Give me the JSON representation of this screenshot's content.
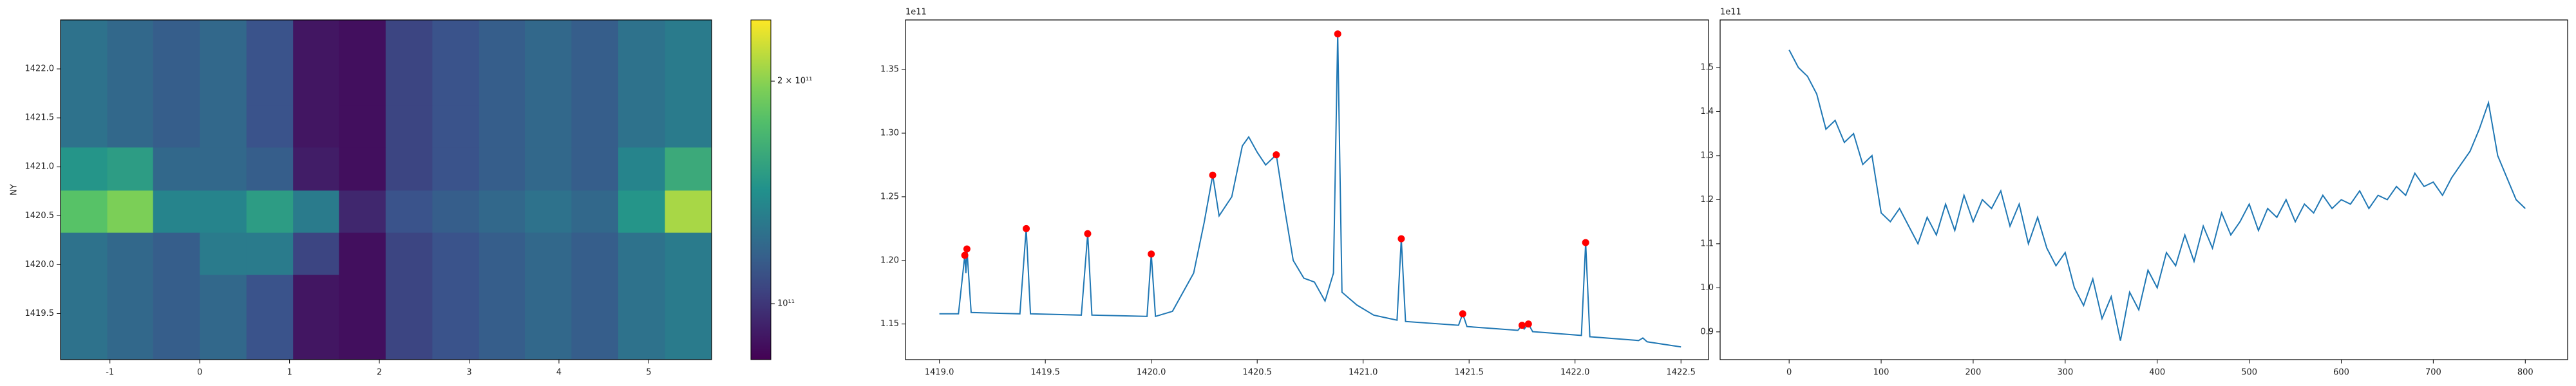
{
  "chart_data": [
    {
      "type": "heatmap",
      "ylabel": "NY",
      "colormap": "viridis",
      "color_log": true,
      "xlim": [
        -1.55,
        5.7
      ],
      "ylim": [
        1419.03,
        1422.5
      ],
      "xticks": [
        -1,
        0,
        1,
        2,
        3,
        4,
        5
      ],
      "yticks": [
        1419.5,
        {
          "value": 1420,
          "label": "1420.0"
        },
        1420.5,
        {
          "value": 1421,
          "label": "1421.0"
        },
        1421.5,
        {
          "value": 1422,
          "label": "1422.0"
        }
      ],
      "xedges": [
        -1.55,
        -1.03,
        -0.52,
        0,
        0.52,
        1.04,
        1.55,
        2.07,
        2.59,
        3.11,
        3.62,
        4.14,
        4.66,
        5.18,
        5.7
      ],
      "yedges": [
        1419.03,
        1419.46,
        1419.9,
        1420.33,
        1420.76,
        1421.2,
        1421.63,
        1422.07,
        1422.5
      ],
      "z": [
        [
          125000000000.0,
          120000000000.0,
          115000000000.0,
          120000000000.0,
          110000000000.0,
          90000000000.0,
          88000000000.0,
          105000000000.0,
          110000000000.0,
          115000000000.0,
          120000000000.0,
          115000000000.0,
          125000000000.0,
          130000000000.0
        ],
        [
          125000000000.0,
          120000000000.0,
          115000000000.0,
          120000000000.0,
          110000000000.0,
          90000000000.0,
          88000000000.0,
          105000000000.0,
          110000000000.0,
          115000000000.0,
          120000000000.0,
          115000000000.0,
          125000000000.0,
          130000000000.0
        ],
        [
          125000000000.0,
          120000000000.0,
          115000000000.0,
          130000000000.0,
          130000000000.0,
          105000000000.0,
          88000000000.0,
          105000000000.0,
          110000000000.0,
          115000000000.0,
          120000000000.0,
          115000000000.0,
          125000000000.0,
          130000000000.0
        ],
        [
          180000000000.0,
          195000000000.0,
          135000000000.0,
          135000000000.0,
          150000000000.0,
          130000000000.0,
          95000000000.0,
          110000000000.0,
          115000000000.0,
          120000000000.0,
          125000000000.0,
          120000000000.0,
          145000000000.0,
          210000000000.0
        ],
        [
          145000000000.0,
          150000000000.0,
          120000000000.0,
          120000000000.0,
          115000000000.0,
          92000000000.0,
          88000000000.0,
          105000000000.0,
          110000000000.0,
          115000000000.0,
          120000000000.0,
          115000000000.0,
          135000000000.0,
          160000000000.0
        ],
        [
          125000000000.0,
          120000000000.0,
          115000000000.0,
          120000000000.0,
          110000000000.0,
          90000000000.0,
          88000000000.0,
          105000000000.0,
          110000000000.0,
          115000000000.0,
          120000000000.0,
          115000000000.0,
          125000000000.0,
          130000000000.0
        ],
        [
          125000000000.0,
          120000000000.0,
          115000000000.0,
          120000000000.0,
          110000000000.0,
          90000000000.0,
          88000000000.0,
          105000000000.0,
          110000000000.0,
          115000000000.0,
          120000000000.0,
          115000000000.0,
          125000000000.0,
          130000000000.0
        ],
        [
          125000000000.0,
          120000000000.0,
          115000000000.0,
          120000000000.0,
          110000000000.0,
          90000000000.0,
          88000000000.0,
          105000000000.0,
          110000000000.0,
          115000000000.0,
          120000000000.0,
          115000000000.0,
          125000000000.0,
          130000000000.0
        ]
      ],
      "clim": [
        84000000000.0,
        242000000000.0
      ],
      "cticks": [
        {
          "value": 100000000000.0,
          "label": "10¹¹"
        },
        {
          "value": 200000000000.0,
          "label": "2 × 10¹¹"
        }
      ]
    },
    {
      "type": "line",
      "y_offset_label": "1e11",
      "xlim": [
        1418.84,
        1422.63
      ],
      "ylim": [
        1.122,
        1.389
      ],
      "xticks": [
        {
          "value": 1419,
          "label": "1419.0"
        },
        1419.5,
        {
          "value": 1420,
          "label": "1420.0"
        },
        1420.5,
        {
          "value": 1421,
          "label": "1421.0"
        },
        1421.5,
        {
          "value": 1422,
          "label": "1422.0"
        },
        1422.5
      ],
      "yticks": [
        1.15,
        {
          "value": 1.2,
          "label": "1.20"
        },
        1.25,
        {
          "value": 1.3,
          "label": "1.30"
        },
        1.35
      ],
      "series": [
        {
          "mode": "line",
          "color": "#1f77b4",
          "x": [
            1419.0,
            1419.09,
            1419.12,
            1419.125,
            1419.13,
            1419.15,
            1419.38,
            1419.41,
            1419.43,
            1419.67,
            1419.7,
            1419.72,
            1419.98,
            1420.0,
            1420.02,
            1420.1,
            1420.2,
            1420.25,
            1420.29,
            1420.32,
            1420.38,
            1420.43,
            1420.46,
            1420.5,
            1420.54,
            1420.59,
            1420.63,
            1420.67,
            1420.72,
            1420.77,
            1420.82,
            1420.86,
            1420.88,
            1420.9,
            1420.97,
            1421.05,
            1421.16,
            1421.18,
            1421.2,
            1421.45,
            1421.47,
            1421.49,
            1421.73,
            1421.75,
            1421.76,
            1421.78,
            1421.8,
            1422.03,
            1422.05,
            1422.07,
            1422.3,
            1422.32,
            1422.34,
            1422.5
          ],
          "values": [
            1.158,
            1.158,
            1.204,
            1.19,
            1.209,
            1.159,
            1.158,
            1.225,
            1.158,
            1.157,
            1.221,
            1.157,
            1.156,
            1.205,
            1.156,
            1.16,
            1.19,
            1.23,
            1.267,
            1.235,
            1.25,
            1.29,
            1.297,
            1.285,
            1.275,
            1.283,
            1.24,
            1.2,
            1.186,
            1.183,
            1.168,
            1.19,
            1.378,
            1.175,
            1.165,
            1.157,
            1.153,
            1.217,
            1.152,
            1.149,
            1.158,
            1.148,
            1.145,
            1.149,
            1.146,
            1.15,
            1.144,
            1.141,
            1.214,
            1.14,
            1.137,
            1.139,
            1.136,
            1.132
          ]
        },
        {
          "mode": "markers",
          "color": "#ff0000",
          "x": [
            1419.12,
            1419.13,
            1419.41,
            1419.7,
            1420.0,
            1420.29,
            1420.59,
            1420.88,
            1421.18,
            1421.47,
            1421.75,
            1421.78,
            1422.05
          ],
          "values": [
            1.204,
            1.209,
            1.225,
            1.221,
            1.205,
            1.267,
            1.283,
            1.378,
            1.217,
            1.158,
            1.149,
            1.15,
            1.214
          ]
        }
      ]
    },
    {
      "type": "line",
      "y_offset_label": "1e11",
      "xlim": [
        -75,
        846
      ],
      "ylim": [
        0.837,
        1.608
      ],
      "xticks": [
        0,
        100,
        200,
        300,
        400,
        500,
        600,
        700,
        800
      ],
      "yticks": [
        0.9,
        {
          "value": 1,
          "label": "1.0"
        },
        1.1,
        1.2,
        1.3,
        1.4,
        1.5
      ],
      "series": [
        {
          "mode": "line",
          "color": "#1f77b4",
          "x": [
            0,
            10,
            20,
            30,
            40,
            50,
            60,
            70,
            80,
            90,
            100,
            110,
            120,
            130,
            140,
            150,
            160,
            170,
            180,
            190,
            200,
            210,
            220,
            230,
            240,
            250,
            260,
            270,
            280,
            290,
            300,
            310,
            320,
            330,
            340,
            350,
            360,
            370,
            380,
            390,
            400,
            410,
            420,
            430,
            440,
            450,
            460,
            470,
            480,
            490,
            500,
            510,
            520,
            530,
            540,
            550,
            560,
            570,
            580,
            590,
            600,
            610,
            620,
            630,
            640,
            650,
            660,
            670,
            680,
            690,
            700,
            710,
            720,
            730,
            740,
            750,
            760,
            770,
            780,
            790,
            800
          ],
          "values": [
            1.54,
            1.5,
            1.48,
            1.44,
            1.36,
            1.38,
            1.33,
            1.35,
            1.28,
            1.3,
            1.17,
            1.15,
            1.18,
            1.14,
            1.1,
            1.16,
            1.12,
            1.19,
            1.13,
            1.21,
            1.15,
            1.2,
            1.18,
            1.22,
            1.14,
            1.19,
            1.1,
            1.16,
            1.09,
            1.05,
            1.08,
            1.0,
            0.96,
            1.02,
            0.93,
            0.98,
            0.88,
            0.99,
            0.95,
            1.04,
            1.0,
            1.08,
            1.05,
            1.12,
            1.06,
            1.14,
            1.09,
            1.17,
            1.12,
            1.15,
            1.19,
            1.13,
            1.18,
            1.16,
            1.2,
            1.15,
            1.19,
            1.17,
            1.21,
            1.18,
            1.2,
            1.19,
            1.22,
            1.18,
            1.21,
            1.2,
            1.23,
            1.21,
            1.26,
            1.23,
            1.24,
            1.21,
            1.25,
            1.28,
            1.31,
            1.36,
            1.42,
            1.3,
            1.25,
            1.2,
            1.18
          ]
        }
      ]
    }
  ]
}
